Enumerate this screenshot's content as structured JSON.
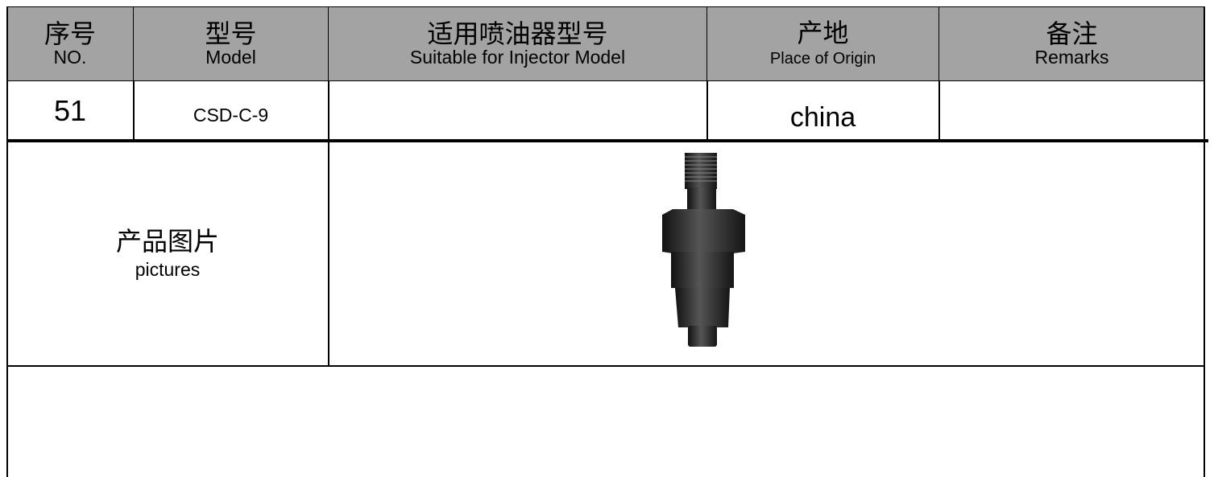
{
  "header": {
    "columns": [
      {
        "zh": "序号",
        "en": "NO."
      },
      {
        "zh": "型号",
        "en": "Model"
      },
      {
        "zh": "适用喷油器型号",
        "en": "Suitable for Injector Model"
      },
      {
        "zh": "产地",
        "en": "Place of Origin"
      },
      {
        "zh": "备注",
        "en": "Remarks"
      }
    ]
  },
  "row": {
    "no": "51",
    "model": "CSD-C-9",
    "origin": "china"
  },
  "pictures": {
    "zh": "产品图片",
    "en": "pictures"
  }
}
